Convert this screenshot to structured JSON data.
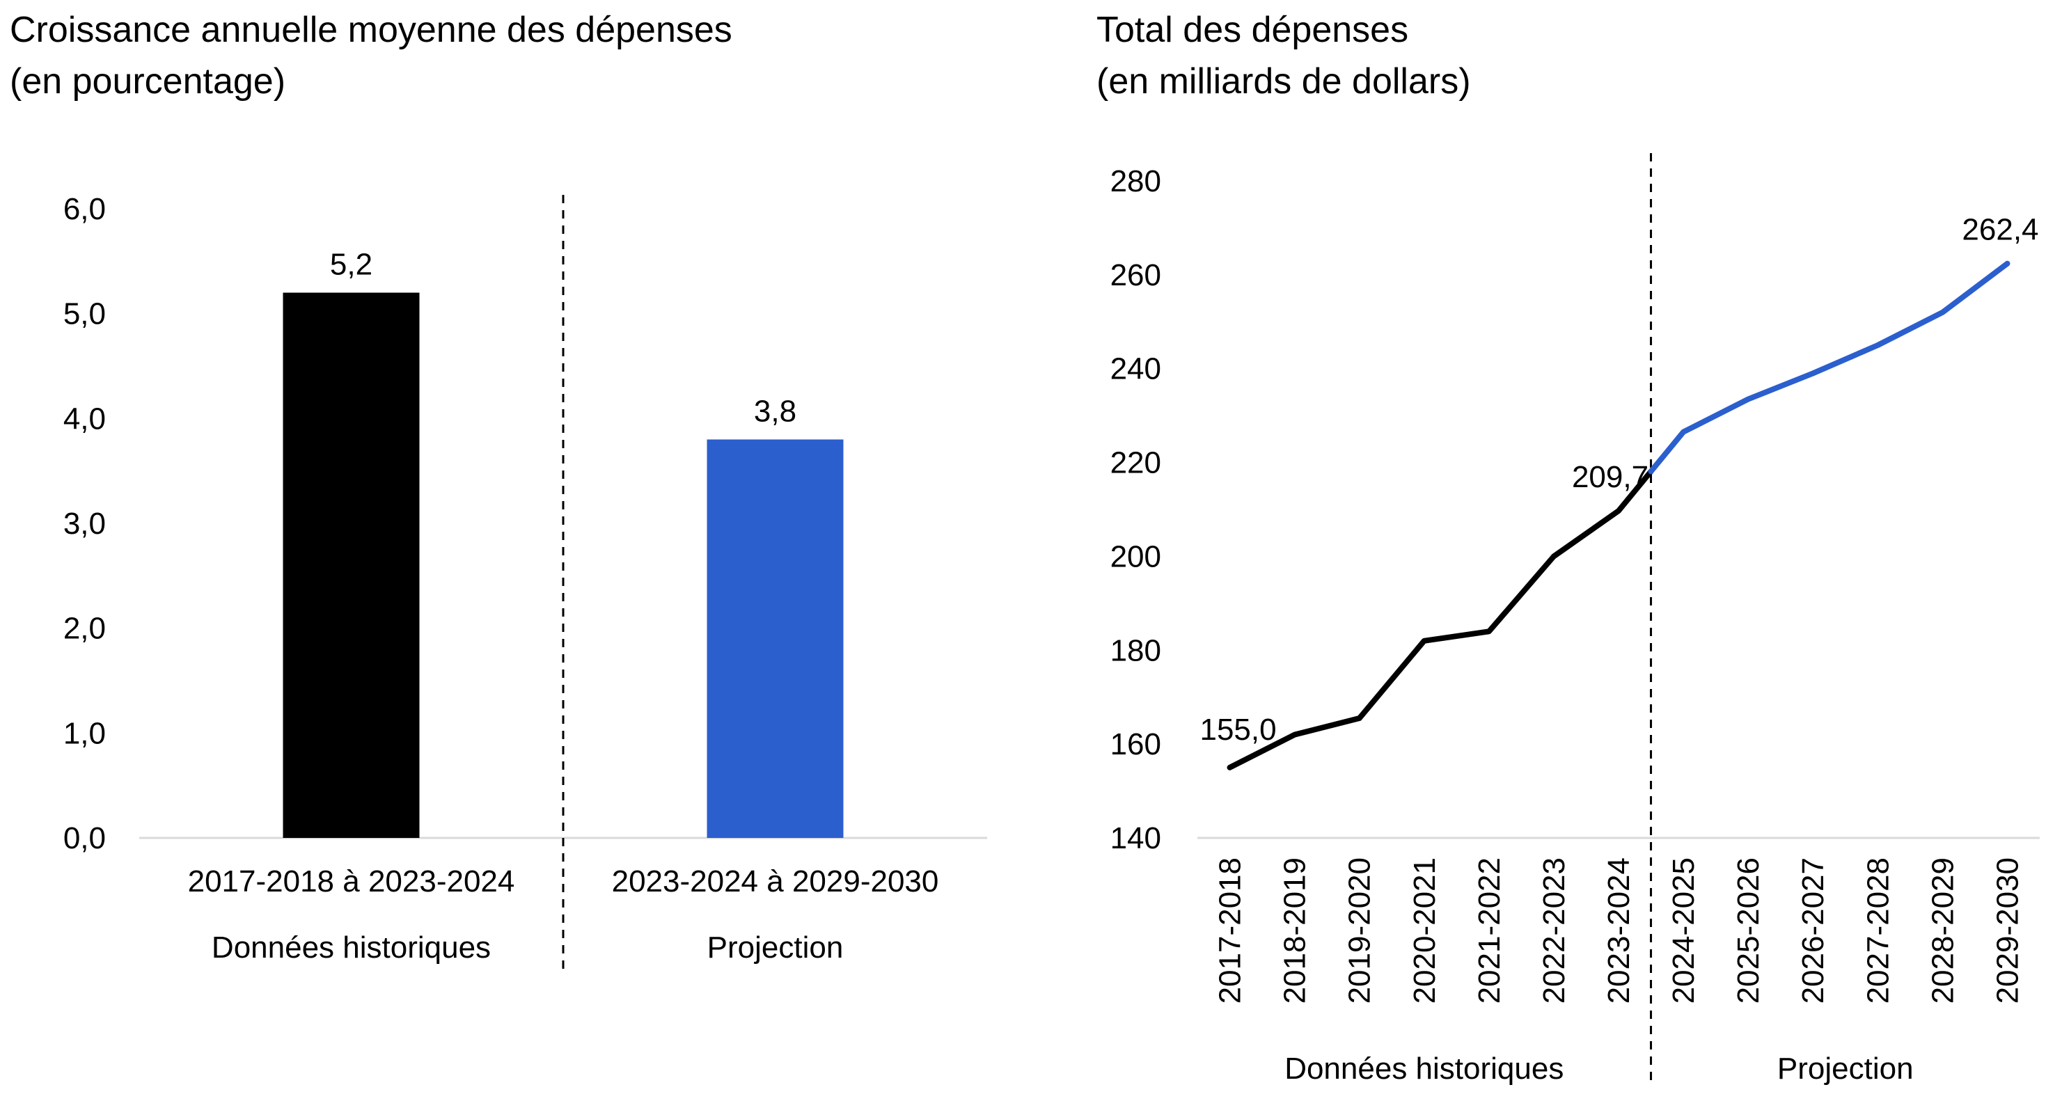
{
  "chart_data": [
    {
      "type": "bar",
      "title": "Croissance annuelle moyenne des dépenses",
      "subtitle": "(en pourcentage)",
      "categories": [
        "2017-2018 à 2023-2024",
        "2023-2024 à 2029-2030"
      ],
      "groups": [
        "Données historiques",
        "Projection"
      ],
      "values": [
        5.2,
        3.8
      ],
      "value_labels": [
        "5,2",
        "3,8"
      ],
      "colors": [
        "#000000",
        "#2b5fce"
      ],
      "ylim": [
        0,
        6
      ],
      "yticks": [
        0,
        1,
        2,
        3,
        4,
        5,
        6
      ],
      "ytick_labels": [
        "0,0",
        "1,0",
        "2,0",
        "3,0",
        "4,0",
        "5,0",
        "6,0"
      ],
      "grid": false
    },
    {
      "type": "line",
      "title": "Total des dépenses",
      "subtitle": "(en milliards de dollars)",
      "categories": [
        "2017-2018",
        "2018-2019",
        "2019-2020",
        "2020-2021",
        "2021-2022",
        "2022-2023",
        "2023-2024",
        "2024-2025",
        "2025-2026",
        "2026-2027",
        "2027-2028",
        "2028-2029",
        "2029-2030"
      ],
      "values": [
        155.0,
        162.0,
        165.5,
        182.0,
        184.0,
        200.0,
        209.7,
        226.5,
        233.5,
        239.0,
        245.0,
        252.0,
        262.4
      ],
      "historical_count": 7,
      "groups": [
        "Données historiques",
        "Projection"
      ],
      "data_labels": [
        {
          "index": 0,
          "text": "155,0"
        },
        {
          "index": 6,
          "text": "209,7"
        },
        {
          "index": 12,
          "text": "262,4"
        }
      ],
      "colors": {
        "historical": "#000000",
        "projection": "#2b5fce"
      },
      "ylim": [
        140,
        280
      ],
      "yticks": [
        140,
        160,
        180,
        200,
        220,
        240,
        260,
        280
      ],
      "ytick_labels": [
        "140",
        "160",
        "180",
        "200",
        "220",
        "240",
        "260",
        "280"
      ],
      "grid": false
    }
  ]
}
